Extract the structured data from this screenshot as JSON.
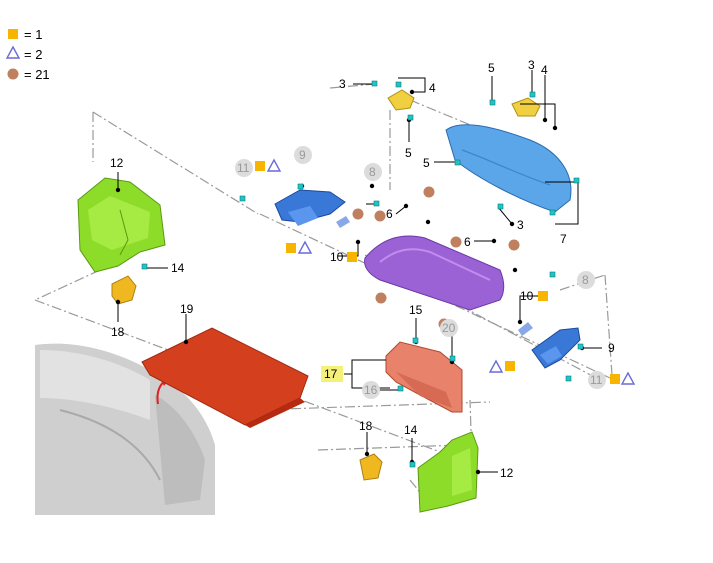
{
  "legend": [
    {
      "symbol": "square",
      "value": "= 1"
    },
    {
      "symbol": "triangle",
      "value": "= 2"
    },
    {
      "symbol": "dot",
      "value": "= 21"
    }
  ],
  "colors": {
    "square": "#f7b500",
    "triangle": "#6a6ad8",
    "dot": "#c08060",
    "green": "#8edc2a",
    "blue": "#3a78d8",
    "purple": "#9b62d6",
    "orange_red": "#d23a1a",
    "salmon": "#e8826a",
    "yellow": "#f0c020",
    "highlight": "#f4f07a",
    "lightblue": "#5aa6e8"
  },
  "callouts": {
    "c3a": "3",
    "c4a": "4",
    "c5a": "5",
    "c5b": "5",
    "c3b": "3",
    "c4b": "4",
    "c5c": "5",
    "c3c": "3",
    "c7": "7",
    "c12a": "12",
    "c11a": "11",
    "c9a": "9",
    "c8a": "8",
    "c6a": "6",
    "c10a": "10",
    "c6b": "6",
    "c14a": "14",
    "c18a": "18",
    "c19": "19",
    "c8b": "8",
    "c10b": "10",
    "c9b": "9",
    "c11b": "11",
    "c15": "15",
    "c20": "20",
    "c17": "17",
    "c16": "16",
    "c18b": "18",
    "c14b": "14",
    "c12b": "12"
  }
}
